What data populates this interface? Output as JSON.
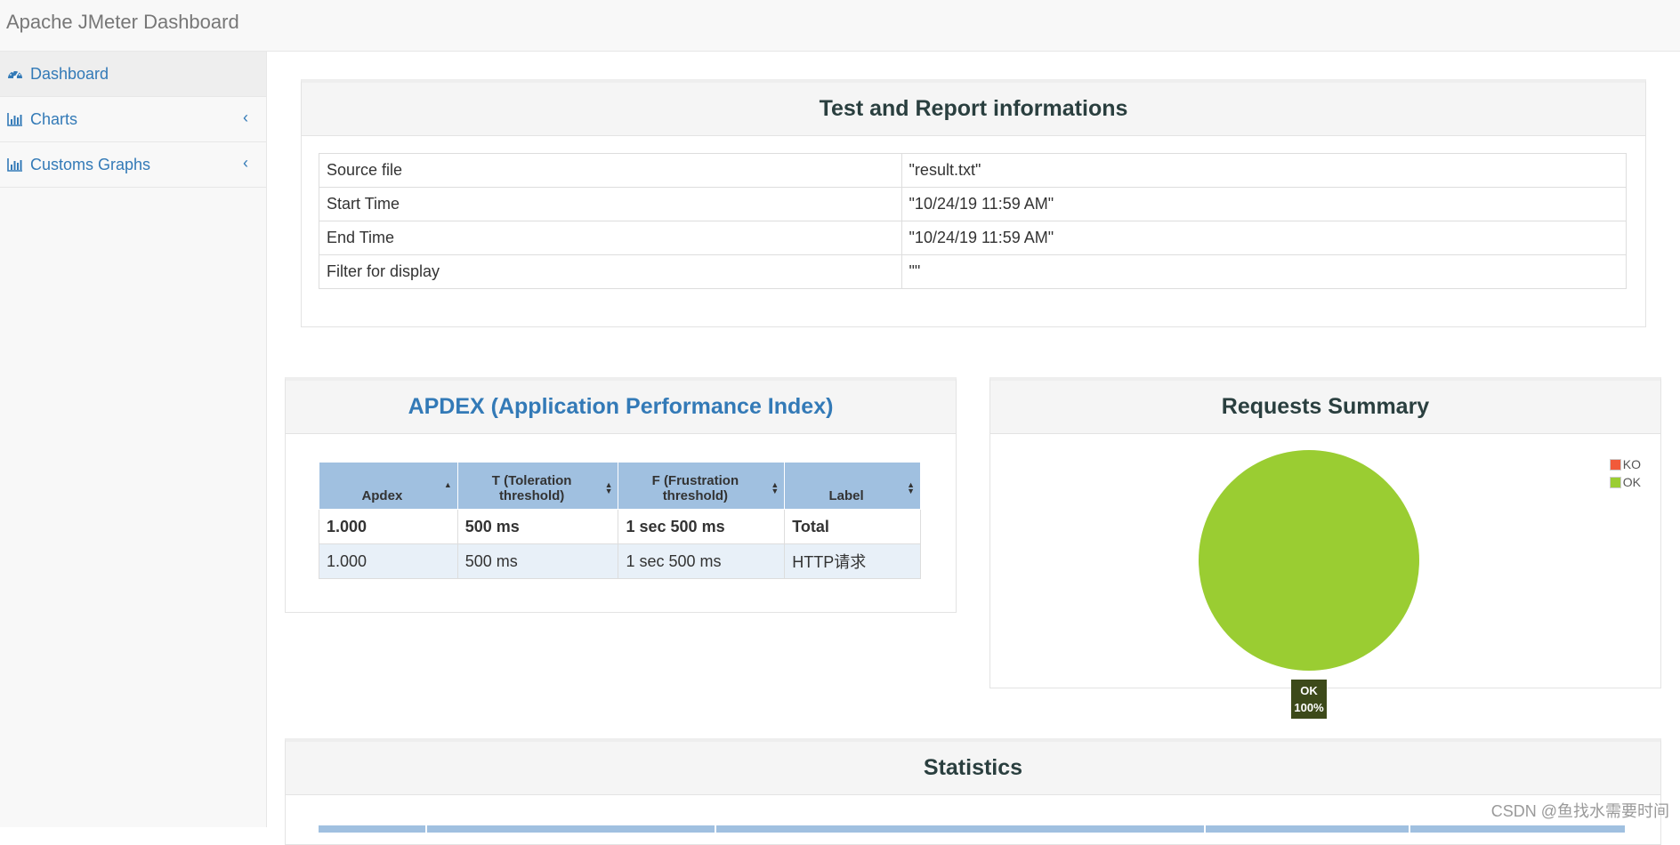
{
  "app": {
    "title": "Apache JMeter Dashboard"
  },
  "sidebar": {
    "items": [
      {
        "label": "Dashboard",
        "icon": "dashboard-icon"
      },
      {
        "label": "Charts",
        "icon": "bar-chart-icon"
      },
      {
        "label": "Customs Graphs",
        "icon": "bar-chart-icon"
      }
    ]
  },
  "test_info": {
    "title": "Test and Report informations",
    "rows": [
      {
        "key": "Source file",
        "value": "\"result.txt\""
      },
      {
        "key": "Start Time",
        "value": "\"10/24/19 11:59 AM\""
      },
      {
        "key": "End Time",
        "value": "\"10/24/19 11:59 AM\""
      },
      {
        "key": "Filter for display",
        "value": "\"\""
      }
    ]
  },
  "apdex": {
    "title": "APDEX (Application Performance Index)",
    "columns": [
      "Apdex",
      "T (Toleration threshold)",
      "F (Frustration threshold)",
      "Label"
    ],
    "rows": [
      {
        "apdex": "1.000",
        "t": "500 ms",
        "f": "1 sec 500 ms",
        "label": "Total"
      },
      {
        "apdex": "1.000",
        "t": "500 ms",
        "f": "1 sec 500 ms",
        "label": "HTTP请求"
      }
    ]
  },
  "requests_summary": {
    "title": "Requests Summary",
    "legend": [
      {
        "label": "KO",
        "color": "#f15a3a"
      },
      {
        "label": "OK",
        "color": "#9acd32"
      }
    ],
    "slice_label": "OK",
    "slice_percent": "100%"
  },
  "chart_data": {
    "type": "pie",
    "title": "Requests Summary",
    "categories": [
      "KO",
      "OK"
    ],
    "values": [
      0,
      100
    ],
    "colors": [
      "#f15a3a",
      "#9acd32"
    ]
  },
  "statistics": {
    "title": "Statistics"
  },
  "watermark": "CSDN @鱼找水需要时间"
}
